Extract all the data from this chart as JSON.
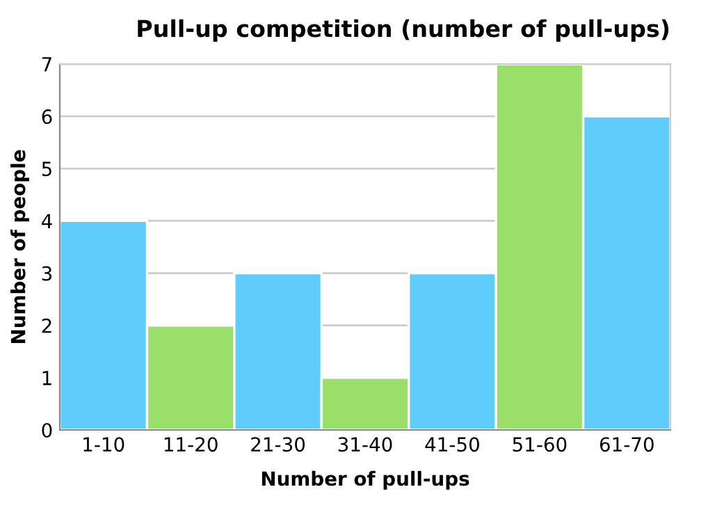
{
  "chart_data": {
    "type": "bar",
    "title": "Pull-up competition (number of pull-ups)",
    "xlabel": "Number of pull-ups",
    "ylabel": "Number of people",
    "categories": [
      "1-10",
      "11-20",
      "21-30",
      "31-40",
      "41-50",
      "51-60",
      "61-70"
    ],
    "values": [
      4,
      2,
      3,
      1,
      3,
      7,
      6
    ],
    "colors": [
      "#5fcdfc",
      "#99df6a",
      "#5fcdfc",
      "#99df6a",
      "#5fcdfc",
      "#99df6a",
      "#5fcdfc"
    ],
    "ylim": [
      0,
      7
    ],
    "yticks": [
      0,
      1,
      2,
      3,
      4,
      5,
      6,
      7
    ],
    "grid": "y",
    "legend": false
  }
}
